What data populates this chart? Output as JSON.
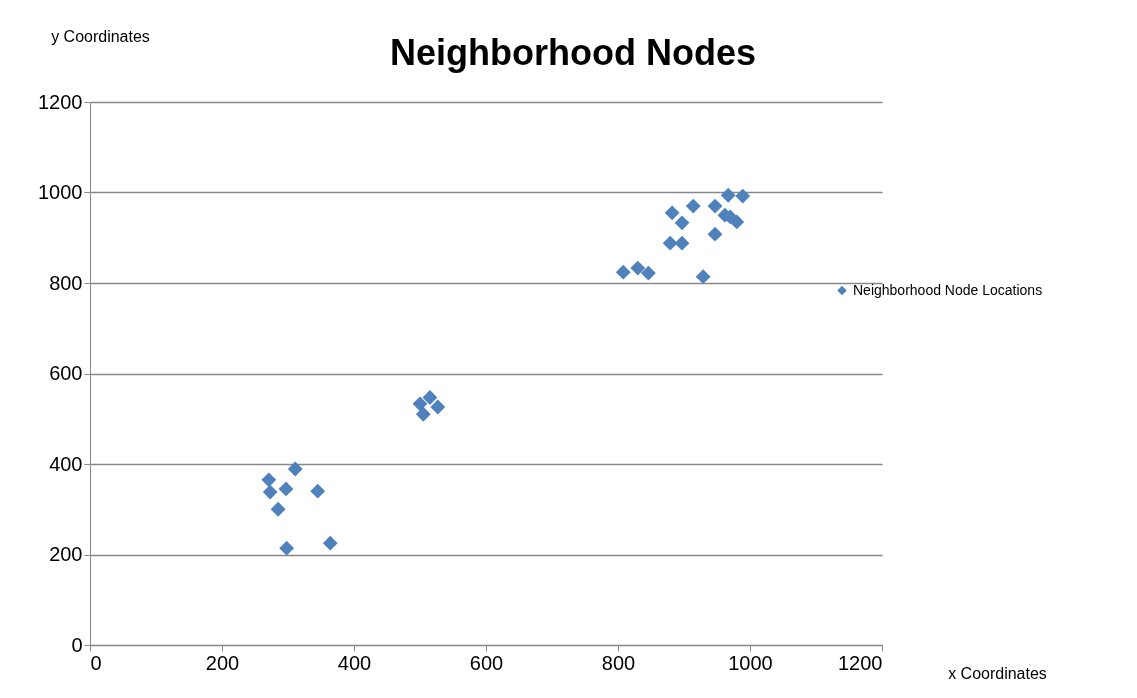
{
  "chart_data": {
    "type": "scatter",
    "title": "Neighborhood Nodes",
    "xlabel": "x Coordinates",
    "ylabel": "y Coordinates",
    "xlim": [
      0,
      1200
    ],
    "xticks": [
      0,
      200,
      400,
      600,
      800,
      1000,
      1200
    ],
    "ylim": [
      0,
      1200
    ],
    "yticks": [
      0,
      200,
      400,
      600,
      800,
      1000,
      1200
    ],
    "grid": "y",
    "legend": "right",
    "marker": "diamond",
    "series": [
      {
        "name": "Neighborhood Node Locations",
        "color": "#4f81bd",
        "x": [
          271,
          273,
          311,
          297,
          345,
          285,
          298,
          364,
          500,
          515,
          527,
          505,
          808,
          830,
          846,
          929,
          879,
          897,
          882,
          897,
          914,
          947,
          947,
          962,
          967,
          989,
          980,
          970
        ],
        "values": [
          365,
          338,
          389,
          345,
          340,
          300,
          214,
          225,
          533,
          547,
          526,
          510,
          824,
          833,
          822,
          814,
          888,
          888,
          955,
          933,
          970,
          908,
          970,
          950,
          994,
          992,
          935,
          946
        ]
      }
    ]
  }
}
